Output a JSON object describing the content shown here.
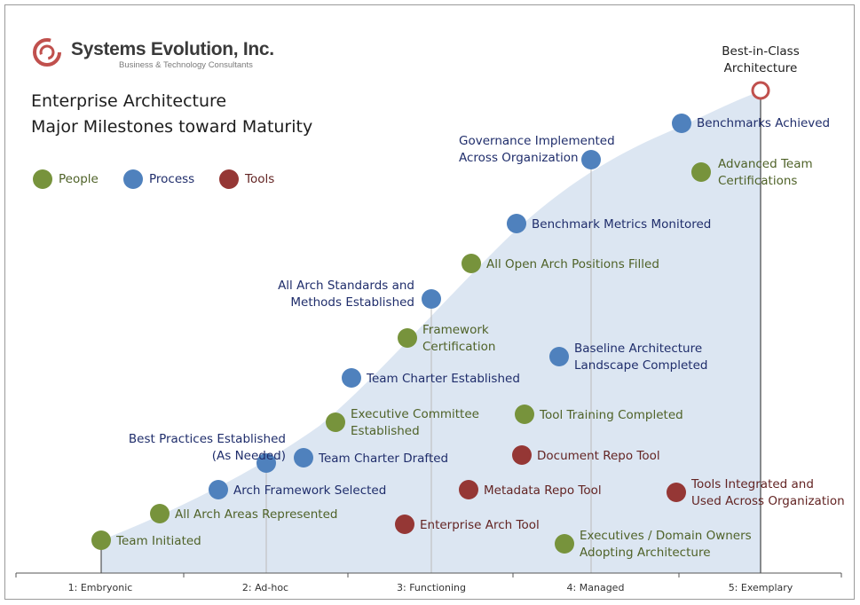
{
  "company": {
    "name": "Systems Evolution, Inc.",
    "tagline": "Business & Technology Consultants"
  },
  "title": {
    "line1": "Enterprise Architecture",
    "line2": "Major Milestones toward Maturity"
  },
  "colors": {
    "people": "#77933c",
    "process": "#4f81bd",
    "tools": "#953735",
    "curve_fill": "#dce6f2",
    "best_ring": "#c0504d"
  },
  "legend": [
    {
      "key": "people",
      "label": "People"
    },
    {
      "key": "process",
      "label": "Process"
    },
    {
      "key": "tools",
      "label": "Tools"
    }
  ],
  "stages": [
    "1: Embryonic",
    "2: Ad-hoc",
    "3: Functioning",
    "4: Managed",
    "5: Exemplary"
  ],
  "best_in_class": {
    "lines": [
      "Best-in-Class",
      "Architecture"
    ]
  },
  "milestones": [
    {
      "type": "people",
      "lines": [
        "Team Initiated"
      ]
    },
    {
      "type": "people",
      "lines": [
        "All Arch Areas Represented"
      ]
    },
    {
      "type": "process",
      "lines": [
        "Arch Framework Selected"
      ]
    },
    {
      "type": "process",
      "lines": [
        "Best Practices Established",
        "(As Needed)"
      ]
    },
    {
      "type": "process",
      "lines": [
        "Team Charter Drafted"
      ]
    },
    {
      "type": "people",
      "lines": [
        "Executive Committee",
        "Established"
      ]
    },
    {
      "type": "process",
      "lines": [
        "Team Charter Established"
      ]
    },
    {
      "type": "people",
      "lines": [
        "Framework",
        "Certification"
      ]
    },
    {
      "type": "process",
      "lines": [
        "All Arch Standards and",
        "Methods Established"
      ]
    },
    {
      "type": "people",
      "lines": [
        "All Open Arch Positions Filled"
      ]
    },
    {
      "type": "process",
      "lines": [
        "Benchmark Metrics Monitored"
      ]
    },
    {
      "type": "process",
      "lines": [
        "Governance Implemented",
        "Across Organization"
      ]
    },
    {
      "type": "process",
      "lines": [
        "Benchmarks Achieved"
      ]
    },
    {
      "type": "people",
      "lines": [
        "Advanced Team",
        "Certifications"
      ]
    },
    {
      "type": "tools",
      "lines": [
        "Enterprise Arch Tool"
      ]
    },
    {
      "type": "tools",
      "lines": [
        "Metadata Repo Tool"
      ]
    },
    {
      "type": "tools",
      "lines": [
        "Document Repo Tool"
      ]
    },
    {
      "type": "people",
      "lines": [
        "Tool Training Completed"
      ]
    },
    {
      "type": "process",
      "lines": [
        "Baseline Architecture",
        "Landscape Completed"
      ]
    },
    {
      "type": "people",
      "lines": [
        "Executives / Domain Owners",
        "Adopting Architecture"
      ]
    },
    {
      "type": "tools",
      "lines": [
        "Tools Integrated and",
        "Used Across Organization"
      ]
    }
  ]
}
